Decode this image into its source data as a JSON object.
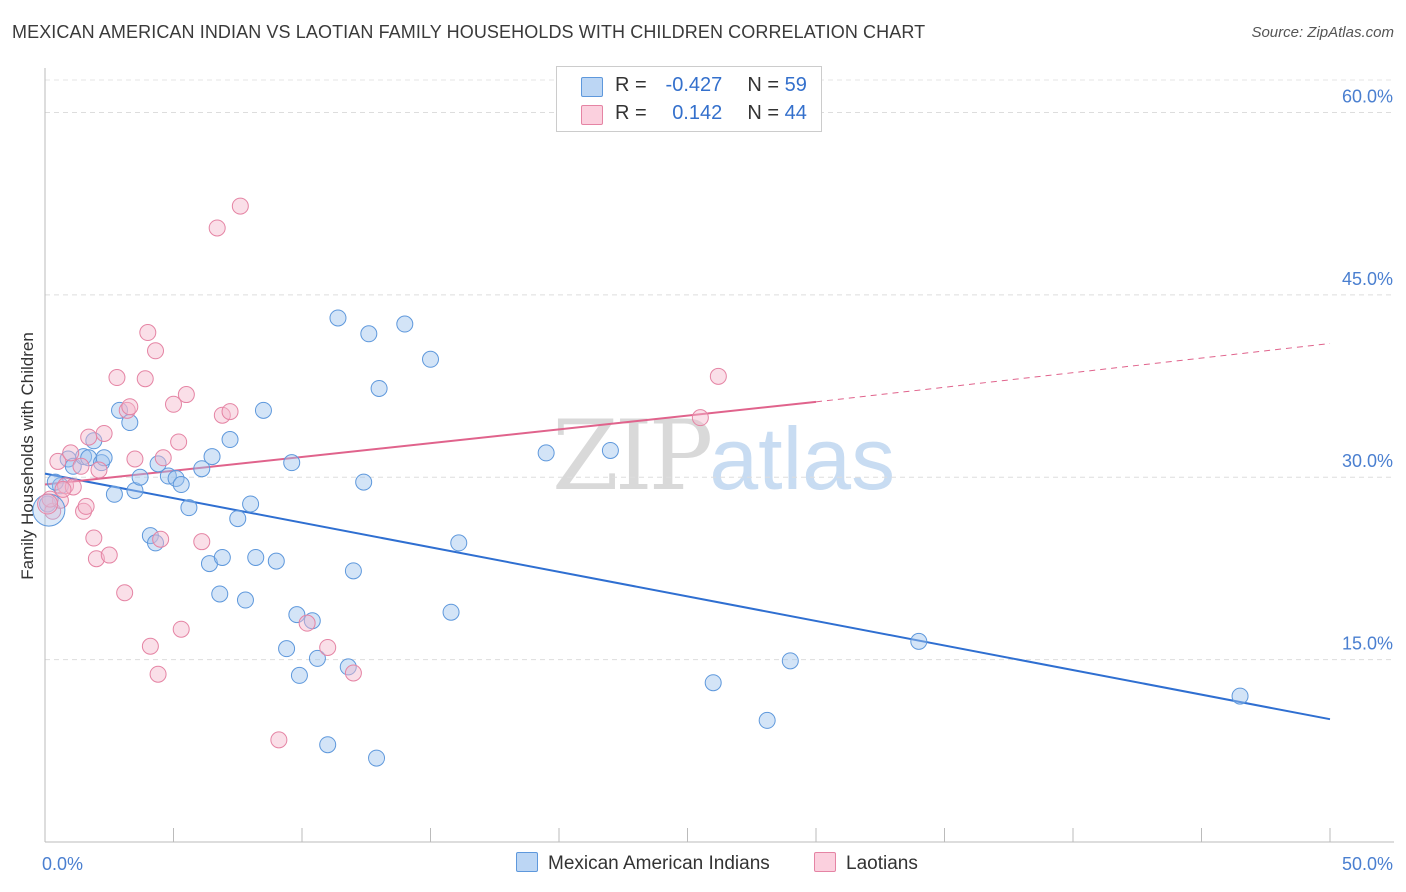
{
  "title": "MEXICAN AMERICAN INDIAN VS LAOTIAN FAMILY HOUSEHOLDS WITH CHILDREN CORRELATION CHART",
  "source": "Source: ZipAtlas.com",
  "watermark": {
    "zip": "ZIP",
    "atlas": "atlas"
  },
  "legend": {
    "rows": [
      {
        "r_label": "R =",
        "r_value": "-0.427",
        "n_label": "N =",
        "n_value": "59",
        "color": "#9ec3ee"
      },
      {
        "r_label": "R =",
        "r_value": "0.142",
        "n_label": "N =",
        "n_value": "44",
        "color": "#f5b8cc"
      }
    ]
  },
  "bottom_legend": {
    "series1": "Mexican American Indians",
    "series2": "Laotians"
  },
  "chart_data": {
    "type": "scatter",
    "title": "MEXICAN AMERICAN INDIAN VS LAOTIAN FAMILY HOUSEHOLDS WITH CHILDREN CORRELATION CHART",
    "xlabel": "",
    "ylabel": "Family Households with Children",
    "xlim": [
      0,
      50
    ],
    "ylim": [
      0,
      63
    ],
    "x_tick_labels": [
      "0.0%",
      "50.0%"
    ],
    "y_ticks": [
      15,
      30,
      45,
      60
    ],
    "y_tick_labels": [
      "15.0%",
      "30.0%",
      "45.0%",
      "60.0%"
    ],
    "grid": true,
    "series": [
      {
        "name": "Mexican American Indians",
        "color": "#9ec3ee",
        "stroke": "#5e98dc",
        "trend_color": "#2f6fd1",
        "trend": {
          "x0": 0,
          "y0": 30.3,
          "x1": 50,
          "y1": 10.1
        },
        "points": [
          [
            0.1,
            27.8
          ],
          [
            0.6,
            29.3
          ],
          [
            0.9,
            31.5
          ],
          [
            1.1,
            30.9
          ],
          [
            1.5,
            31.7
          ],
          [
            1.7,
            31.6
          ],
          [
            1.9,
            33.0
          ],
          [
            2.2,
            31.2
          ],
          [
            2.3,
            31.6
          ],
          [
            2.7,
            28.6
          ],
          [
            2.9,
            35.5
          ],
          [
            3.3,
            34.5
          ],
          [
            3.5,
            28.9
          ],
          [
            3.7,
            30.0
          ],
          [
            4.1,
            25.2
          ],
          [
            4.3,
            24.6
          ],
          [
            4.4,
            31.1
          ],
          [
            4.8,
            30.1
          ],
          [
            5.1,
            29.9
          ],
          [
            5.3,
            29.4
          ],
          [
            5.6,
            27.5
          ],
          [
            6.1,
            30.7
          ],
          [
            6.4,
            22.9
          ],
          [
            6.5,
            31.7
          ],
          [
            6.8,
            20.4
          ],
          [
            6.9,
            23.4
          ],
          [
            7.2,
            33.1
          ],
          [
            7.5,
            26.6
          ],
          [
            7.8,
            19.9
          ],
          [
            8.0,
            27.8
          ],
          [
            8.2,
            23.4
          ],
          [
            8.5,
            35.5
          ],
          [
            9.0,
            23.1
          ],
          [
            9.4,
            15.9
          ],
          [
            9.6,
            31.2
          ],
          [
            9.8,
            18.7
          ],
          [
            9.9,
            13.7
          ],
          [
            10.4,
            18.2
          ],
          [
            10.6,
            15.1
          ],
          [
            11.0,
            8.0
          ],
          [
            11.4,
            43.1
          ],
          [
            11.8,
            14.4
          ],
          [
            12.0,
            22.3
          ],
          [
            12.4,
            29.6
          ],
          [
            12.6,
            41.8
          ],
          [
            12.9,
            6.9
          ],
          [
            13.0,
            37.3
          ],
          [
            14.0,
            42.6
          ],
          [
            15.0,
            39.7
          ],
          [
            15.8,
            18.9
          ],
          [
            16.1,
            24.6
          ],
          [
            19.5,
            32.0
          ],
          [
            22.0,
            32.2
          ],
          [
            26.0,
            13.1
          ],
          [
            28.1,
            10.0
          ],
          [
            29.0,
            14.9
          ],
          [
            34.0,
            16.5
          ],
          [
            46.5,
            12.0
          ],
          [
            0.4,
            29.6
          ]
        ]
      },
      {
        "name": "Laotians",
        "color": "#f5b8cc",
        "stroke": "#e584a4",
        "trend_color": "#e0638c",
        "trend": {
          "x0": 0,
          "y0": 29.4,
          "x1": 30,
          "y1": 36.2
        },
        "trend_dashed": {
          "x0": 30,
          "y0": 36.2,
          "x1": 50,
          "y1": 41.0
        },
        "points": [
          [
            0.3,
            27.2
          ],
          [
            0.5,
            31.3
          ],
          [
            0.6,
            28.1
          ],
          [
            0.8,
            29.3
          ],
          [
            1.0,
            32.0
          ],
          [
            1.1,
            29.2
          ],
          [
            1.4,
            30.9
          ],
          [
            1.5,
            27.2
          ],
          [
            1.6,
            27.6
          ],
          [
            1.7,
            33.3
          ],
          [
            1.9,
            25.0
          ],
          [
            2.0,
            23.3
          ],
          [
            2.1,
            30.6
          ],
          [
            2.3,
            33.6
          ],
          [
            2.5,
            23.6
          ],
          [
            2.8,
            38.2
          ],
          [
            3.1,
            20.5
          ],
          [
            3.2,
            35.5
          ],
          [
            3.3,
            35.8
          ],
          [
            3.5,
            31.5
          ],
          [
            3.9,
            38.1
          ],
          [
            4.0,
            41.9
          ],
          [
            4.1,
            16.1
          ],
          [
            4.3,
            40.4
          ],
          [
            4.4,
            13.8
          ],
          [
            4.5,
            24.9
          ],
          [
            4.6,
            31.6
          ],
          [
            5.0,
            36.0
          ],
          [
            5.2,
            32.9
          ],
          [
            5.3,
            17.5
          ],
          [
            5.5,
            36.8
          ],
          [
            6.1,
            24.7
          ],
          [
            6.7,
            50.5
          ],
          [
            6.9,
            35.1
          ],
          [
            7.2,
            35.4
          ],
          [
            7.6,
            52.3
          ],
          [
            9.1,
            8.4
          ],
          [
            10.2,
            18.0
          ],
          [
            11.0,
            16.0
          ],
          [
            12.0,
            13.9
          ],
          [
            25.5,
            34.9
          ],
          [
            26.2,
            38.3
          ],
          [
            0.2,
            28.2
          ],
          [
            0.7,
            29.0
          ]
        ]
      }
    ]
  }
}
